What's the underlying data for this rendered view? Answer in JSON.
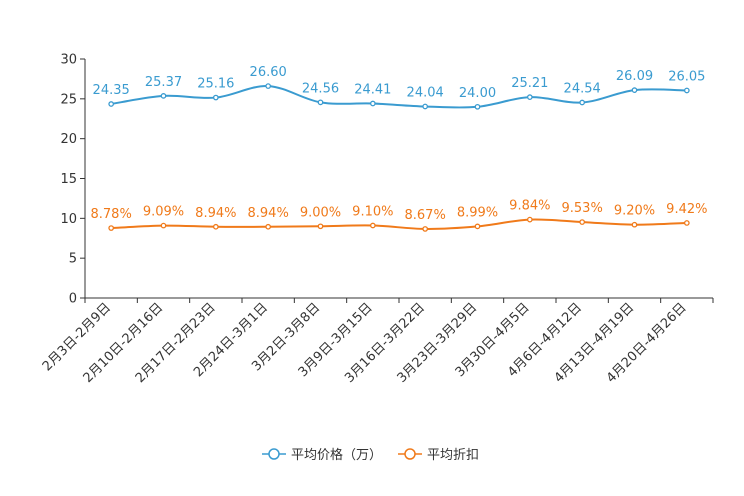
{
  "chart_data": {
    "type": "line",
    "title": "",
    "xlabel": "",
    "ylabel": "",
    "ylim": [
      0,
      30
    ],
    "yticks": [
      0,
      5,
      10,
      15,
      20,
      25,
      30
    ],
    "grid": false,
    "legend_position": "bottom-center",
    "categories": [
      "2月3日-2月9日",
      "2月10日-2月16日",
      "2月17日-2月23日",
      "2月24日-3月1日",
      "3月2日-3月8日",
      "3月9日-3月15日",
      "3月16日-3月22日",
      "3月23日-3月29日",
      "3月30日-4月5日",
      "4月6日-4月12日",
      "4月13日-4月19日",
      "4月20日-4月26日"
    ],
    "series": [
      {
        "name": "平均价格（万）",
        "color": "#3a9bd0",
        "smooth": true,
        "values": [
          24.35,
          25.37,
          25.16,
          26.6,
          24.56,
          24.41,
          24.04,
          24.0,
          25.21,
          24.54,
          26.09,
          26.05
        ],
        "labels": [
          "24.35",
          "25.37",
          "25.16",
          "26.60",
          "24.56",
          "24.41",
          "24.04",
          "24.00",
          "25.21",
          "24.54",
          "26.09",
          "26.05"
        ]
      },
      {
        "name": "平均折扣",
        "color": "#f07a1a",
        "smooth": true,
        "values": [
          8.78,
          9.09,
          8.94,
          8.94,
          9.0,
          9.1,
          8.67,
          8.99,
          9.84,
          9.53,
          9.2,
          9.42
        ],
        "labels": [
          "8.78%",
          "9.09%",
          "8.94%",
          "8.94%",
          "9.00%",
          "9.10%",
          "8.67%",
          "8.99%",
          "9.84%",
          "9.53%",
          "9.20%",
          "9.42%"
        ]
      }
    ]
  }
}
